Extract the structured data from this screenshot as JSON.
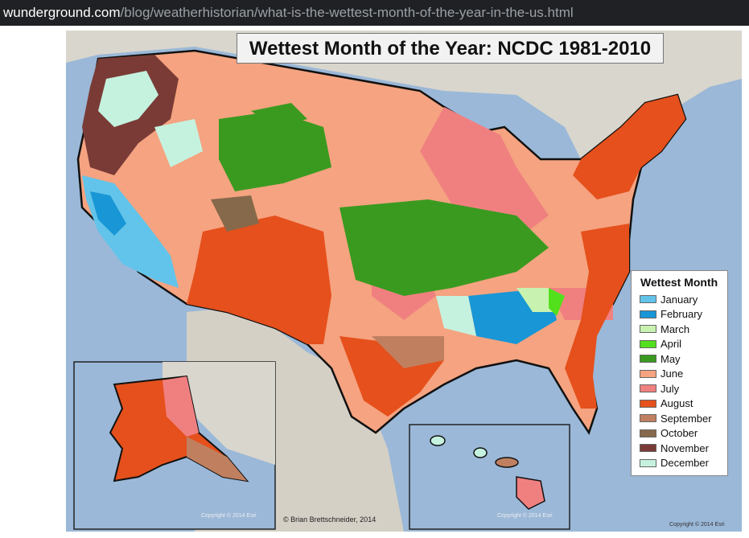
{
  "browser": {
    "url_domain": "wunderground.com",
    "url_path": "/blog/weatherhistorian/what-is-the-wettest-month-of-the-year-in-the-us.html"
  },
  "map": {
    "title": "Wettest Month of the Year: NCDC 1981-2010",
    "author_credit": "© Brian Brettschneider, 2014",
    "esri_credits": [
      "Copyright © 2014 Esri",
      "Copyright © 2014 Esri",
      "Copyright © 2014 Esri"
    ],
    "legend": {
      "title": "Wettest Month",
      "items": [
        {
          "label": "January",
          "color": "#62c4ea"
        },
        {
          "label": "February",
          "color": "#1896d6"
        },
        {
          "label": "March",
          "color": "#c8f2b0"
        },
        {
          "label": "April",
          "color": "#52e01c"
        },
        {
          "label": "May",
          "color": "#3a9a20"
        },
        {
          "label": "June",
          "color": "#f5a380"
        },
        {
          "label": "July",
          "color": "#f08080"
        },
        {
          "label": "August",
          "color": "#e5501c"
        },
        {
          "label": "September",
          "color": "#c08060"
        },
        {
          "label": "October",
          "color": "#86694a"
        },
        {
          "label": "November",
          "color": "#7a3b36"
        },
        {
          "label": "December",
          "color": "#c5f2df"
        }
      ]
    },
    "colors": {
      "ocean": "#9bb8d8",
      "outside_land": "#d8d4cc",
      "border_line": "#111111"
    }
  }
}
